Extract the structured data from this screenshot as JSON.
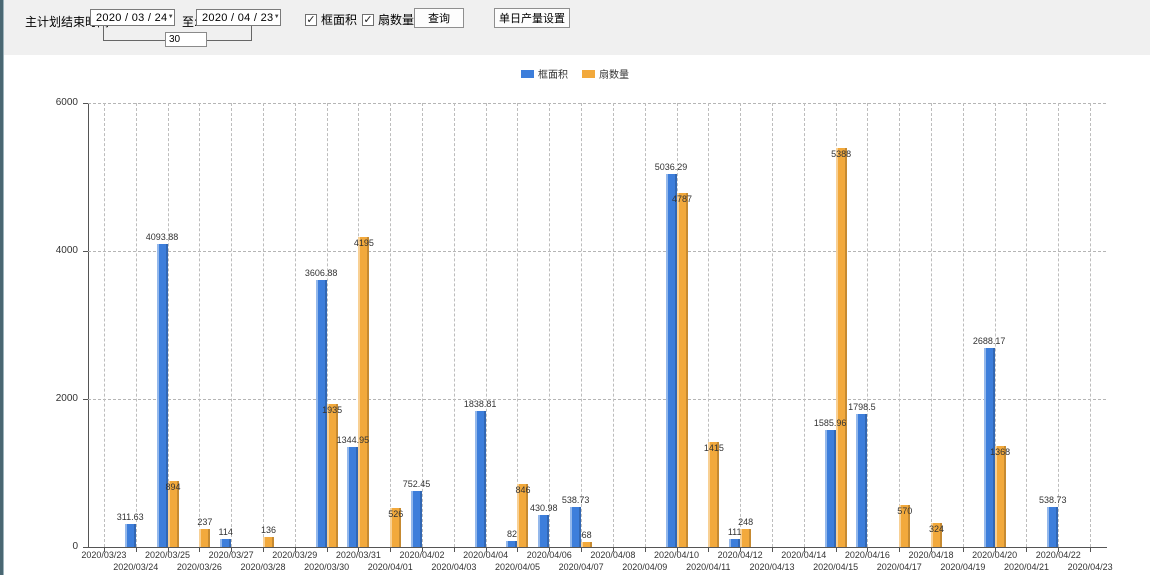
{
  "toolbar": {
    "label_main": "主计划结束时间:",
    "date_from": "2020 / 03 / 24",
    "label_to": "至:",
    "date_to": "2020 / 04 / 23",
    "offset_value": "30",
    "checkbox_area": {
      "label": "框面积",
      "checked": true
    },
    "checkbox_fan": {
      "label": "扇数量",
      "checked": true
    },
    "query_button": "查询",
    "daily_output_button": "单日产量设置"
  },
  "legend": [
    {
      "label": "框面积",
      "color": "#3d7edb"
    },
    {
      "label": "扇数量",
      "color": "#f2a93c"
    }
  ],
  "chart_data": {
    "type": "bar",
    "title": "",
    "xlabel": "",
    "ylabel": "",
    "ylim": [
      0,
      6000
    ],
    "yticks": [
      0,
      2000,
      4000,
      6000
    ],
    "grid": true,
    "legend_position": "top-center",
    "categories": [
      "2020/03/23",
      "2020/03/24",
      "2020/03/25",
      "2020/03/26",
      "2020/03/27",
      "2020/03/28",
      "2020/03/29",
      "2020/03/30",
      "2020/03/31",
      "2020/04/01",
      "2020/04/02",
      "2020/04/03",
      "2020/04/04",
      "2020/04/05",
      "2020/04/06",
      "2020/04/07",
      "2020/04/08",
      "2020/04/09",
      "2020/04/10",
      "2020/04/11",
      "2020/04/12",
      "2020/04/13",
      "2020/04/14",
      "2020/04/15",
      "2020/04/16",
      "2020/04/17",
      "2020/04/18",
      "2020/04/19",
      "2020/04/20",
      "2020/04/21",
      "2020/04/22",
      "2020/04/23"
    ],
    "series": [
      {
        "name": "框面积",
        "color": "#3d7edb",
        "values": [
          null,
          311.63,
          4093.88,
          null,
          114,
          null,
          null,
          3606.88,
          1344.95,
          null,
          752.45,
          null,
          1838.81,
          82,
          430.98,
          538.73,
          null,
          null,
          5036.29,
          null,
          111,
          null,
          null,
          1585.96,
          1798.5,
          null,
          null,
          null,
          2688.17,
          null,
          538.73,
          null
        ]
      },
      {
        "name": "扇数量",
        "color": "#f2a93c",
        "values": [
          null,
          null,
          894,
          237,
          null,
          136,
          null,
          1935,
          4195,
          526,
          null,
          null,
          null,
          846,
          null,
          68,
          null,
          null,
          4787,
          1415,
          248,
          null,
          null,
          5388,
          null,
          570,
          324,
          null,
          1368,
          null,
          null,
          null
        ]
      }
    ]
  }
}
